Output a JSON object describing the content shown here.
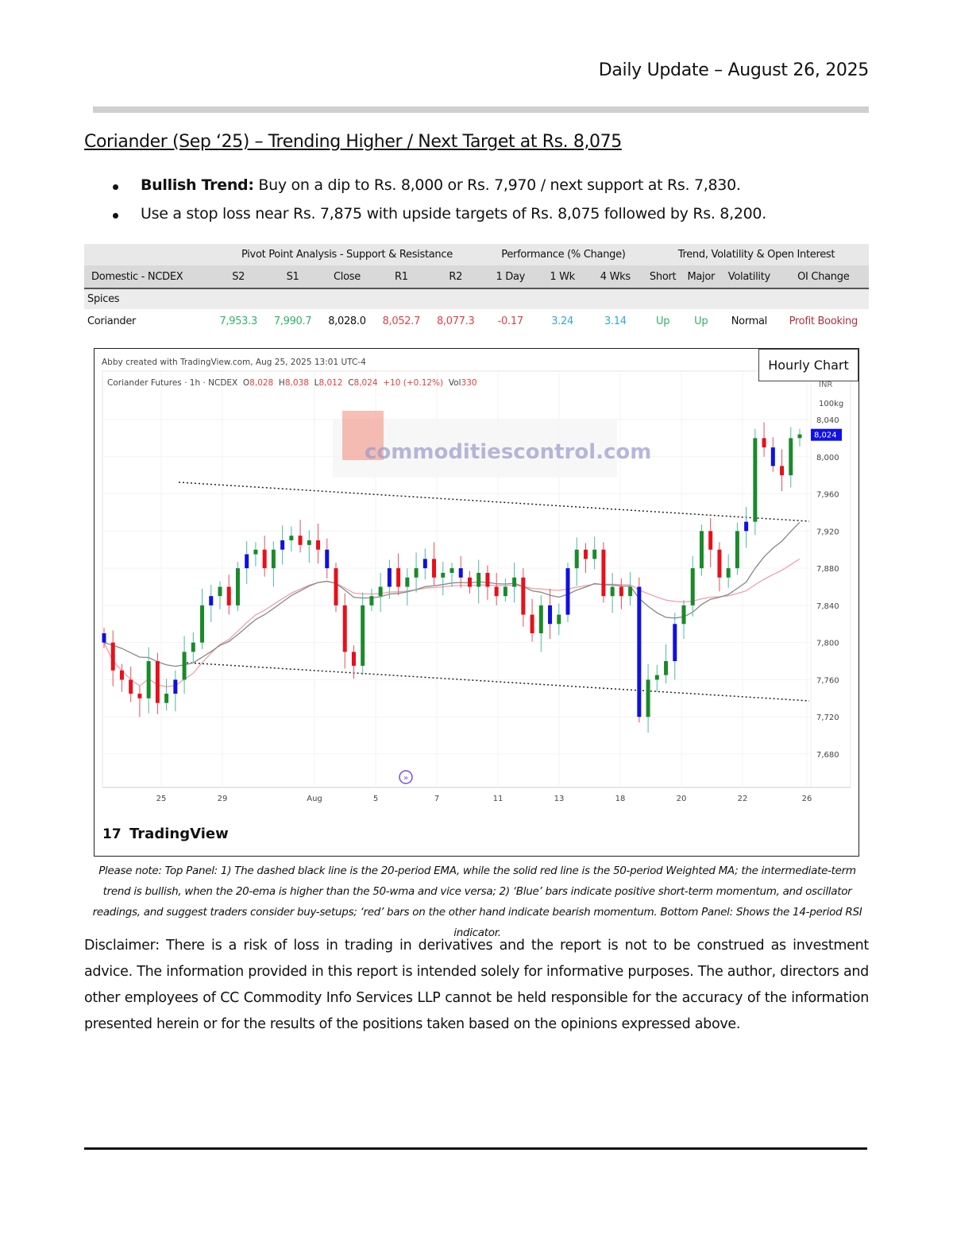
{
  "header": {
    "title": "Daily Update – August 26, 2025"
  },
  "report": {
    "title": "Coriander (Sep ‘25) – Trending Higher / Next Target at Rs. 8,075",
    "bullets": [
      {
        "bold": "Bullish Trend:",
        "text": " Buy on a dip to Rs. 8,000 or Rs. 7,970 / next support at Rs. 7,830."
      },
      {
        "bold": "",
        "text": "Use a stop loss near Rs. 7,875 with upside targets of Rs. 8,075 followed by Rs. 8,200."
      }
    ]
  },
  "table": {
    "group_headers": [
      "Pivot Point Analysis - Support & Resistance",
      "Performance (% Change)",
      "Trend, Volatility & Open Interest"
    ],
    "columns": [
      "Domestic - NCDEX",
      "S2",
      "S1",
      "Close",
      "R1",
      "R2",
      "1 Day",
      "1 Wk",
      "4 Wks",
      "Short",
      "Major",
      "Volatility",
      "OI Change"
    ],
    "section": "Spices",
    "row": [
      "Coriander",
      "7,953.3",
      "7,990.7",
      "8,028.0",
      "8,052.7",
      "8,077.3",
      "-0.17",
      "3.24",
      "3.14",
      "Up",
      "Up",
      "Normal",
      "Profit Booking"
    ]
  },
  "chart": {
    "credit": "Abby created with TradingView.com, Aug 25, 2025 13:01 UTC-4",
    "symbol": "Coriander Futures · 1h · NCDEX",
    "ohlc": {
      "o_label": "O",
      "o": "8,028",
      "h_label": "H",
      "h": "8,038",
      "l_label": "L",
      "l": "8,012",
      "c_label": "C",
      "c": "8,024",
      "chg": "+10 (+0.12%)",
      "vol_label": "Vol",
      "vol": "330"
    },
    "badge": "Hourly Chart",
    "unit1": "INR",
    "unit2": "100kg",
    "last_price": "8,024",
    "watermark": "commoditiescontrol.com",
    "brand": "TradingView",
    "colors": {
      "up": "#1a8a2a",
      "down": "#e8101a",
      "blue": "#1010e0",
      "ema": "#888888",
      "wma": "#f0a0a8"
    }
  },
  "chart_data": {
    "type": "candlestick",
    "y_ticks": [
      7680,
      7720,
      7760,
      7800,
      7840,
      7880,
      7920,
      7960,
      8000,
      8040
    ],
    "ylim": [
      7650,
      8070
    ],
    "x_ticks": [
      "25",
      "29",
      "Aug",
      "5",
      "7",
      "11",
      "13",
      "18",
      "20",
      "22",
      "26"
    ],
    "closes_approx": [
      7800,
      7770,
      7760,
      7745,
      7740,
      7780,
      7735,
      7745,
      7760,
      7790,
      7800,
      7840,
      7850,
      7860,
      7840,
      7880,
      7895,
      7900,
      7880,
      7900,
      7910,
      7915,
      7905,
      7910,
      7900,
      7880,
      7840,
      7790,
      7775,
      7840,
      7850,
      7860,
      7880,
      7860,
      7870,
      7880,
      7890,
      7870,
      7875,
      7880,
      7870,
      7860,
      7875,
      7860,
      7850,
      7860,
      7870,
      7830,
      7810,
      7840,
      7820,
      7830,
      7880,
      7900,
      7890,
      7900,
      7850,
      7860,
      7850,
      7860,
      7720,
      7760,
      7765,
      7780,
      7820,
      7840,
      7880,
      7920,
      7900,
      7870,
      7880,
      7920,
      7930,
      8020,
      8010,
      7990,
      7980,
      8020,
      8024
    ],
    "trendlines": "descending channel (upper and lower dotted lines)",
    "series": [
      {
        "name": "20-period EMA"
      },
      {
        "name": "50-period Weighted MA"
      }
    ]
  },
  "note": "Please note: Top Panel: 1) The dashed black line is the 20-period EMA, while the solid red line is the 50-period Weighted MA; the intermediate-term trend is bullish, when the 20-ema is higher than the 50-wma and vice versa; 2)  ‘Blue’  bars indicate positive short-term momentum, and oscillator readings, and suggest traders consider buy-setups;  ‘red’  bars on the other hand indicate bearish momentum. Bottom Panel: Shows the 14-period RSI indicator.",
  "disclaimer": "Disclaimer: There is a risk of loss in trading in derivatives and the report is not to be construed as investment advice. The information provided in this report is intended solely for informative purposes. The author, directors and other employees of CC Commodity Info Services LLP cannot be held responsible for the accuracy of the information presented herein or for the results of the positions taken based on the opinions expressed above."
}
